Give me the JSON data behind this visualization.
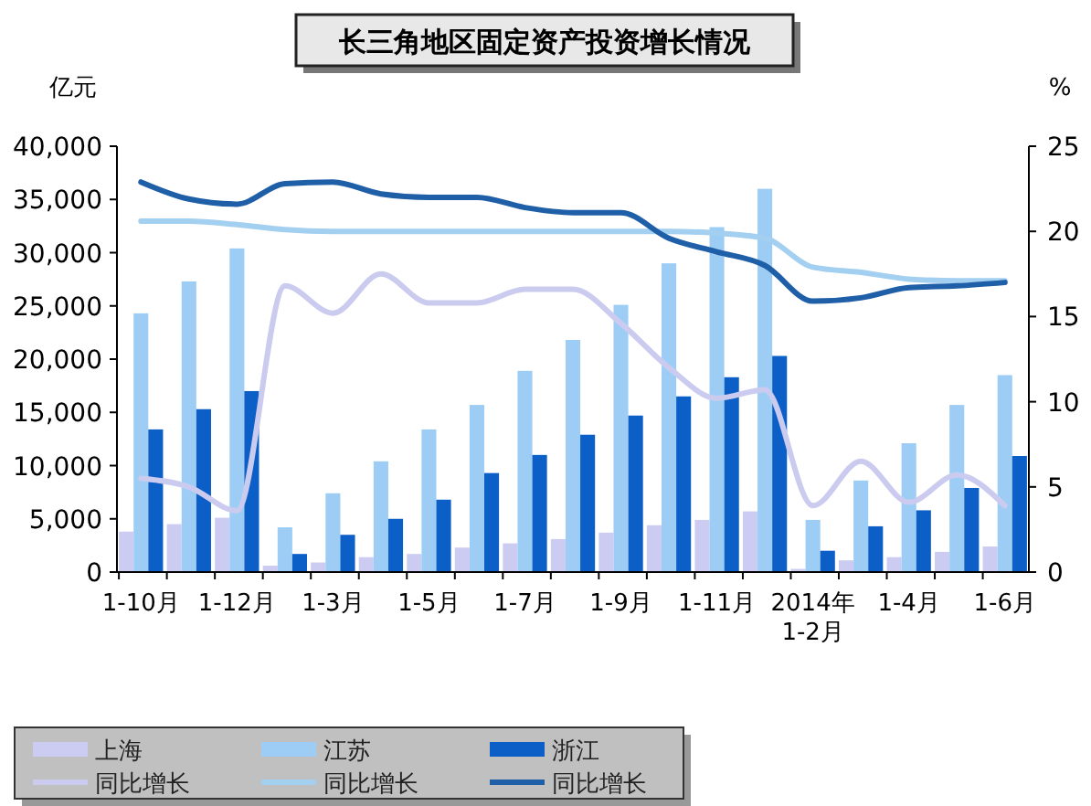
{
  "chart_data": {
    "type": "bar",
    "title": "长三角地区固定资产投资增长情况",
    "ylabel": "亿元",
    "y2label": "%",
    "categories": [
      "1-10月",
      null,
      "1-12月",
      null,
      "1-3月",
      null,
      "1-5月",
      null,
      "1-7月",
      null,
      "1-9月",
      null,
      "1-11月",
      null,
      "2014年\n1-2月",
      null,
      "1-4月",
      null,
      "1-6月"
    ],
    "series": [
      {
        "name": "上海",
        "color": "#ccccf2",
        "values": [
          3800,
          4500,
          5100,
          600,
          900,
          1400,
          1700,
          2300,
          2700,
          3100,
          3700,
          4400,
          4900,
          5700,
          300,
          1100,
          1400,
          1900,
          2400
        ]
      },
      {
        "name": "江苏",
        "color": "#9dcdf5",
        "values": [
          24300,
          27300,
          30400,
          4200,
          7400,
          10400,
          13400,
          15700,
          18900,
          21800,
          25100,
          29000,
          32400,
          36000,
          4900,
          8600,
          12100,
          15700,
          18500
        ]
      },
      {
        "name": "浙江",
        "color": "#0b5fc6",
        "values": [
          13400,
          15300,
          17000,
          1700,
          3500,
          5000,
          6800,
          9300,
          11000,
          12900,
          14700,
          16500,
          18300,
          20300,
          2000,
          4300,
          5800,
          7900,
          10900
        ]
      },
      {
        "name": "同比增长",
        "type": "line",
        "axis": "y2",
        "color": "#cbcbf0",
        "values": [
          5.5,
          5.0,
          3.6,
          16.8,
          15.2,
          17.5,
          15.8,
          15.8,
          16.6,
          16.6,
          14.6,
          12.0,
          10.2,
          10.7,
          3.9,
          6.5,
          4.1,
          5.7,
          3.9
        ]
      },
      {
        "name": "同比增长",
        "type": "line",
        "axis": "y2",
        "color": "#a3cff0",
        "values": [
          20.6,
          20.6,
          20.4,
          20.1,
          20.0,
          20.0,
          20.0,
          20.0,
          20.0,
          20.0,
          20.0,
          20.0,
          19.9,
          19.6,
          17.9,
          17.6,
          17.2,
          17.1,
          17.1
        ]
      },
      {
        "name": "同比增长",
        "type": "line",
        "axis": "y2",
        "color": "#1f5fa8",
        "values": [
          22.9,
          21.9,
          21.6,
          22.8,
          22.9,
          22.2,
          22.0,
          22.0,
          21.4,
          21.1,
          21.1,
          19.6,
          18.8,
          18.0,
          15.9,
          16.1,
          16.7,
          16.8,
          17.0
        ]
      }
    ],
    "ylim": [
      0,
      40000
    ],
    "yticks": [
      0,
      {
        "value": 5000,
        "label": "5,000"
      },
      {
        "value": 10000,
        "label": "10,000"
      },
      {
        "value": 15000,
        "label": "15,000"
      },
      {
        "value": 20000,
        "label": "20,000"
      },
      {
        "value": 25000,
        "label": "25,000"
      },
      {
        "value": 30000,
        "label": "30,000"
      },
      {
        "value": 35000,
        "label": "35,000"
      },
      {
        "value": 40000,
        "label": "40,000"
      }
    ],
    "y2lim": [
      0,
      25
    ],
    "y2ticks": [
      0,
      5,
      10,
      15,
      20,
      25
    ],
    "grid": false,
    "legend": "bottom",
    "marker": "none",
    "line_style": "solid"
  }
}
